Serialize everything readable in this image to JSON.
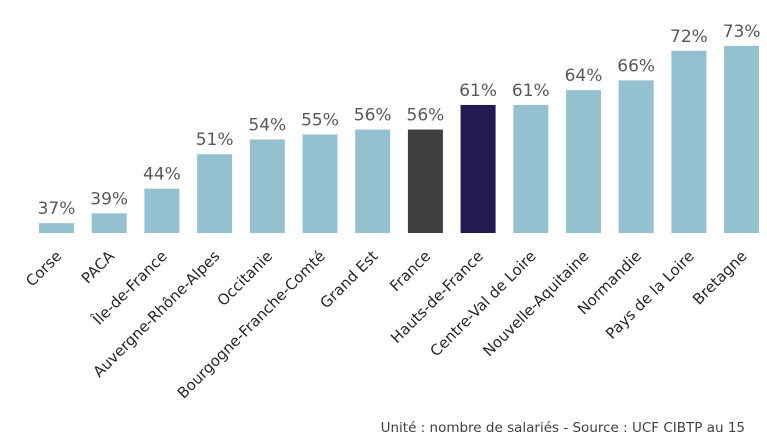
{
  "chart_data": {
    "type": "bar",
    "categories": [
      "Corse",
      "PACA",
      "Île-de-France",
      "Auvergne-Rhône-Alpes",
      "Occitanie",
      "Bourgogne-Franche-Comté",
      "Grand Est",
      "France",
      "Hauts-de-France",
      "Centre-Val de Loire",
      "Nouvelle-Aquitaine",
      "Normandie",
      "Pays de la Loire",
      "Bretagne"
    ],
    "values": [
      37,
      39,
      44,
      51,
      54,
      55,
      56,
      56,
      61,
      61,
      64,
      66,
      72,
      73
    ],
    "value_labels": [
      "37%",
      "39%",
      "44%",
      "51%",
      "54%",
      "55%",
      "56%",
      "56%",
      "61%",
      "61%",
      "64%",
      "66%",
      "72%",
      "73%"
    ],
    "colors": [
      "#93c1cf",
      "#93c1cf",
      "#93c1cf",
      "#93c1cf",
      "#93c1cf",
      "#93c1cf",
      "#93c1cf",
      "#404040",
      "#221a52",
      "#93c1cf",
      "#93c1cf",
      "#93c1cf",
      "#93c1cf",
      "#93c1cf"
    ],
    "ylim": [
      35,
      75
    ],
    "source": "Unité : nombre de salariés - Source : UCF CIBTP au 15"
  }
}
